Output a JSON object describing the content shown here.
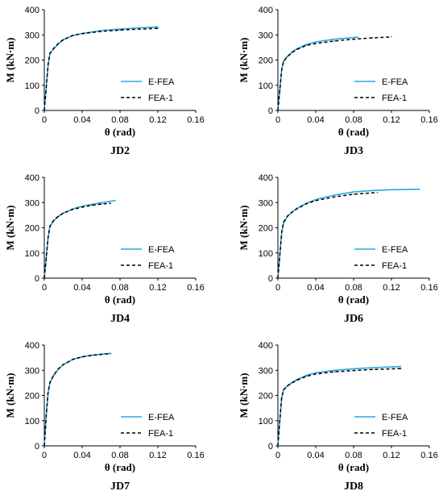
{
  "chart_data": [
    {
      "type": "line",
      "title": "JD2",
      "xlabel": "θ (rad)",
      "ylabel": "M (kN·m)",
      "xlim": [
        0,
        0.16
      ],
      "ylim": [
        0,
        400
      ],
      "x_ticks": [
        "0",
        "0.04",
        "0.08",
        "0.12",
        "0.16"
      ],
      "y_ticks": [
        "0",
        "100",
        "200",
        "300",
        "400"
      ],
      "grid": false,
      "legend_position": "lower-right",
      "series": [
        {
          "name": "E-FEA",
          "color": "#29a9df",
          "style": "solid",
          "x": [
            0,
            0.002,
            0.004,
            0.006,
            0.01,
            0.015,
            0.02,
            0.03,
            0.04,
            0.06,
            0.08,
            0.1,
            0.12
          ],
          "y": [
            0,
            90,
            180,
            225,
            245,
            265,
            280,
            297,
            306,
            317,
            323,
            328,
            332
          ]
        },
        {
          "name": "FEA-1",
          "color": "#000000",
          "style": "dashed",
          "x": [
            0,
            0.002,
            0.004,
            0.006,
            0.01,
            0.015,
            0.02,
            0.03,
            0.04,
            0.06,
            0.08,
            0.1,
            0.12
          ],
          "y": [
            0,
            92,
            182,
            228,
            247,
            267,
            281,
            298,
            305,
            314,
            319,
            323,
            326
          ]
        }
      ]
    },
    {
      "type": "line",
      "title": "JD3",
      "xlabel": "θ (rad)",
      "ylabel": "M (kN·m)",
      "xlim": [
        0,
        0.16
      ],
      "ylim": [
        0,
        400
      ],
      "x_ticks": [
        "0",
        "0.04",
        "0.08",
        "0.12",
        "0.16"
      ],
      "y_ticks": [
        "0",
        "100",
        "200",
        "300",
        "400"
      ],
      "grid": false,
      "legend_position": "lower-right",
      "series": [
        {
          "name": "E-FEA",
          "color": "#29a9df",
          "style": "solid",
          "x": [
            0,
            0.002,
            0.004,
            0.006,
            0.01,
            0.015,
            0.02,
            0.03,
            0.04,
            0.06,
            0.085
          ],
          "y": [
            0,
            80,
            160,
            195,
            215,
            232,
            245,
            262,
            272,
            283,
            291
          ]
        },
        {
          "name": "FEA-1",
          "color": "#000000",
          "style": "dashed",
          "x": [
            0,
            0.002,
            0.004,
            0.006,
            0.01,
            0.015,
            0.02,
            0.03,
            0.04,
            0.06,
            0.08,
            0.1,
            0.12
          ],
          "y": [
            0,
            82,
            162,
            195,
            213,
            230,
            242,
            258,
            266,
            276,
            283,
            288,
            292
          ]
        }
      ]
    },
    {
      "type": "line",
      "title": "JD4",
      "xlabel": "θ (rad)",
      "ylabel": "M (kN·m)",
      "xlim": [
        0,
        0.16
      ],
      "ylim": [
        0,
        400
      ],
      "x_ticks": [
        "0",
        "0.04",
        "0.08",
        "0.12",
        "0.16"
      ],
      "y_ticks": [
        "0",
        "100",
        "200",
        "300",
        "400"
      ],
      "grid": false,
      "legend_position": "lower-right",
      "series": [
        {
          "name": "E-FEA",
          "color": "#29a9df",
          "style": "solid",
          "x": [
            0,
            0.002,
            0.004,
            0.006,
            0.01,
            0.015,
            0.02,
            0.03,
            0.04,
            0.05,
            0.06,
            0.075
          ],
          "y": [
            0,
            80,
            160,
            205,
            228,
            245,
            258,
            275,
            285,
            293,
            299,
            308
          ]
        },
        {
          "name": "FEA-1",
          "color": "#000000",
          "style": "dashed",
          "x": [
            0,
            0.002,
            0.004,
            0.006,
            0.01,
            0.015,
            0.02,
            0.03,
            0.04,
            0.05,
            0.06,
            0.07
          ],
          "y": [
            0,
            82,
            162,
            207,
            230,
            246,
            258,
            273,
            282,
            289,
            294,
            297
          ]
        }
      ]
    },
    {
      "type": "line",
      "title": "JD6",
      "xlabel": "θ (rad)",
      "ylabel": "M (kN·m)",
      "xlim": [
        0,
        0.16
      ],
      "ylim": [
        0,
        400
      ],
      "x_ticks": [
        "0",
        "0.04",
        "0.08",
        "0.12",
        "0.16"
      ],
      "y_ticks": [
        "0",
        "100",
        "200",
        "300",
        "400"
      ],
      "grid": false,
      "legend_position": "lower-right",
      "series": [
        {
          "name": "E-FEA",
          "color": "#29a9df",
          "style": "solid",
          "x": [
            0,
            0.002,
            0.004,
            0.006,
            0.01,
            0.015,
            0.02,
            0.03,
            0.04,
            0.06,
            0.08,
            0.1,
            0.12,
            0.15
          ],
          "y": [
            0,
            90,
            180,
            220,
            245,
            262,
            277,
            297,
            312,
            330,
            342,
            348,
            351,
            353
          ]
        },
        {
          "name": "FEA-1",
          "color": "#000000",
          "style": "dashed",
          "x": [
            0,
            0.002,
            0.004,
            0.006,
            0.01,
            0.015,
            0.02,
            0.03,
            0.04,
            0.06,
            0.08,
            0.105
          ],
          "y": [
            0,
            92,
            182,
            222,
            246,
            262,
            275,
            295,
            308,
            323,
            333,
            340
          ]
        }
      ]
    },
    {
      "type": "line",
      "title": "JD7",
      "xlabel": "θ (rad)",
      "ylabel": "M (kN·m)",
      "xlim": [
        0,
        0.16
      ],
      "ylim": [
        0,
        400
      ],
      "x_ticks": [
        "0",
        "0.04",
        "0.08",
        "0.12",
        "0.16"
      ],
      "y_ticks": [
        "0",
        "100",
        "200",
        "300",
        "400"
      ],
      "grid": false,
      "legend_position": "lower-right",
      "series": [
        {
          "name": "E-FEA",
          "color": "#29a9df",
          "style": "solid",
          "x": [
            0,
            0.002,
            0.004,
            0.006,
            0.01,
            0.015,
            0.02,
            0.03,
            0.04,
            0.05,
            0.06,
            0.07
          ],
          "y": [
            0,
            120,
            210,
            250,
            280,
            305,
            322,
            343,
            354,
            360,
            364,
            367
          ]
        },
        {
          "name": "FEA-1",
          "color": "#000000",
          "style": "dashed",
          "x": [
            0,
            0.002,
            0.004,
            0.006,
            0.01,
            0.015,
            0.02,
            0.03,
            0.04,
            0.05,
            0.06,
            0.07
          ],
          "y": [
            0,
            122,
            212,
            252,
            282,
            306,
            323,
            343,
            353,
            359,
            363,
            366
          ]
        }
      ]
    },
    {
      "type": "line",
      "title": "JD8",
      "xlabel": "θ (rad)",
      "ylabel": "M (kN·m)",
      "xlim": [
        0,
        0.16
      ],
      "ylim": [
        0,
        400
      ],
      "x_ticks": [
        "0",
        "0.04",
        "0.08",
        "0.12",
        "0.16"
      ],
      "y_ticks": [
        "0",
        "100",
        "200",
        "300",
        "400"
      ],
      "grid": false,
      "legend_position": "lower-right",
      "series": [
        {
          "name": "E-FEA",
          "color": "#29a9df",
          "style": "solid",
          "x": [
            0,
            0.002,
            0.004,
            0.006,
            0.01,
            0.015,
            0.02,
            0.03,
            0.04,
            0.06,
            0.08,
            0.1,
            0.13
          ],
          "y": [
            0,
            100,
            190,
            222,
            238,
            252,
            263,
            280,
            290,
            300,
            306,
            310,
            315
          ]
        },
        {
          "name": "FEA-1",
          "color": "#000000",
          "style": "dashed",
          "x": [
            0,
            0.002,
            0.004,
            0.006,
            0.01,
            0.015,
            0.02,
            0.03,
            0.04,
            0.06,
            0.08,
            0.1,
            0.13
          ],
          "y": [
            0,
            102,
            192,
            223,
            238,
            250,
            260,
            276,
            285,
            294,
            299,
            303,
            307
          ]
        }
      ]
    }
  ]
}
